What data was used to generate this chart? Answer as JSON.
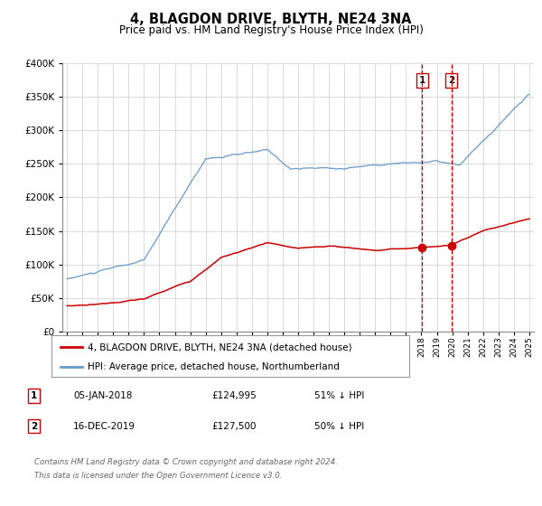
{
  "title": "4, BLAGDON DRIVE, BLYTH, NE24 3NA",
  "subtitle": "Price paid vs. HM Land Registry's House Price Index (HPI)",
  "legend_line1": "4, BLAGDON DRIVE, BLYTH, NE24 3NA (detached house)",
  "legend_line2": "HPI: Average price, detached house, Northumberland",
  "sale1_date": "05-JAN-2018",
  "sale1_price": "£124,995",
  "sale1_pct": "51% ↓ HPI",
  "sale2_date": "16-DEC-2019",
  "sale2_price": "£127,500",
  "sale2_pct": "50% ↓ HPI",
  "footer_line1": "Contains HM Land Registry data © Crown copyright and database right 2024.",
  "footer_line2": "This data is licensed under the Open Government Licence v3.0.",
  "red_color": "#cc0000",
  "blue_color": "#6699cc",
  "vline_color": "#cc0000",
  "grid_color": "#cccccc",
  "background_color": "#ffffff",
  "sale1_year": 2018.04,
  "sale2_year": 2019.96,
  "sale1_y": 124995,
  "sale2_y": 127500,
  "ylim": [
    0,
    400000
  ],
  "xlim_start": 1994.7,
  "xlim_end": 2025.3
}
